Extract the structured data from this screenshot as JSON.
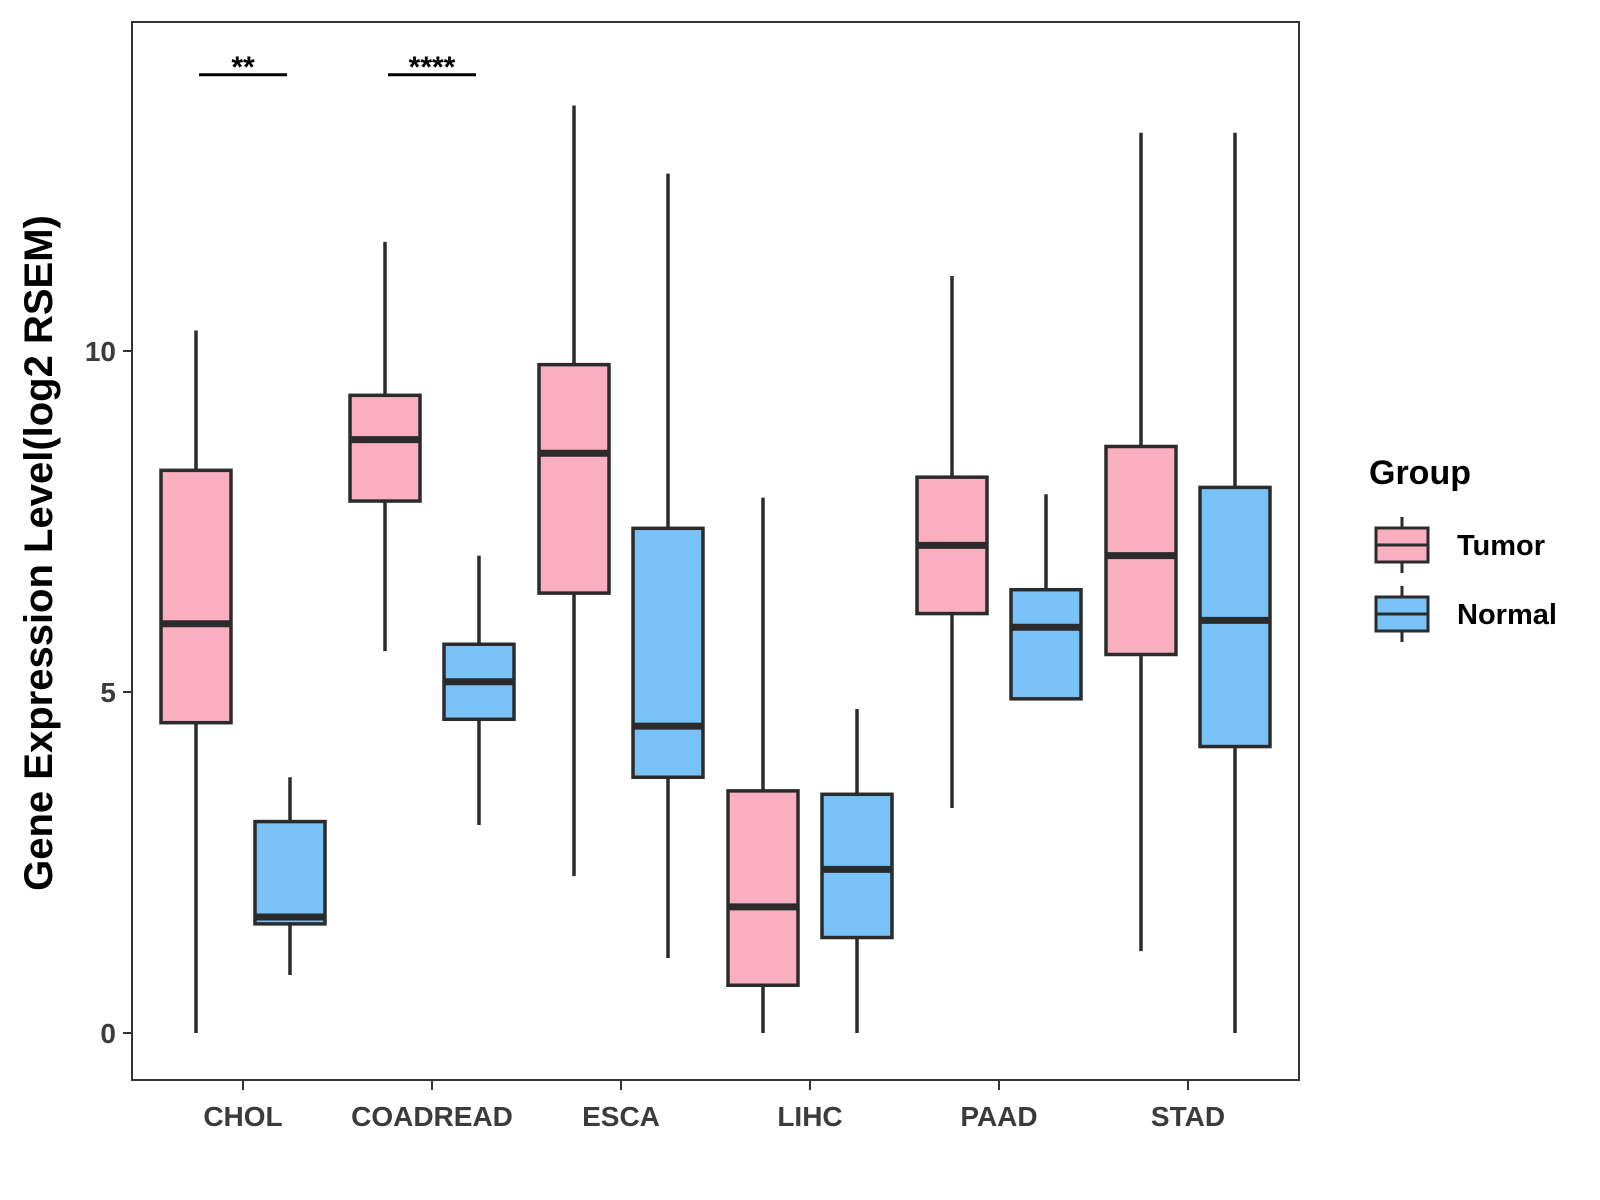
{
  "chart_data": {
    "type": "boxplot",
    "title": "",
    "xlabel": "",
    "ylabel": "Gene Expression Level(log2 RSEM)",
    "ylim": [
      -0.7,
      14.8
    ],
    "yticks": [
      0,
      5,
      10
    ],
    "categories": [
      "CHOL",
      "COADREAD",
      "ESCA",
      "LIHC",
      "PAAD",
      "STAD"
    ],
    "legend": {
      "title": "Group",
      "position": "right"
    },
    "series": [
      {
        "name": "Tumor",
        "color": "#F9AFC0",
        "boxes": [
          {
            "category": "CHOL",
            "min": 0.0,
            "q1": 4.55,
            "median": 6.0,
            "q3": 8.25,
            "max": 10.3
          },
          {
            "category": "COADREAD",
            "min": 5.6,
            "q1": 7.8,
            "median": 8.7,
            "q3": 9.35,
            "max": 11.6
          },
          {
            "category": "ESCA",
            "min": 2.3,
            "q1": 6.45,
            "median": 8.5,
            "q3": 9.8,
            "max": 13.6
          },
          {
            "category": "LIHC",
            "min": 0.0,
            "q1": 0.7,
            "median": 1.85,
            "q3": 3.55,
            "max": 7.85
          },
          {
            "category": "PAAD",
            "min": 3.3,
            "q1": 6.15,
            "median": 7.15,
            "q3": 8.15,
            "max": 11.1
          },
          {
            "category": "STAD",
            "min": 1.2,
            "q1": 5.55,
            "median": 7.0,
            "q3": 8.6,
            "max": 13.2
          }
        ]
      },
      {
        "name": "Normal",
        "color": "#79C2F8",
        "boxes": [
          {
            "category": "CHOL",
            "min": 0.85,
            "q1": 1.6,
            "median": 1.7,
            "q3": 3.1,
            "max": 3.75
          },
          {
            "category": "COADREAD",
            "min": 3.05,
            "q1": 4.6,
            "median": 5.15,
            "q3": 5.7,
            "max": 7.0
          },
          {
            "category": "ESCA",
            "min": 1.1,
            "q1": 3.75,
            "median": 4.5,
            "q3": 7.4,
            "max": 12.6
          },
          {
            "category": "LIHC",
            "min": 0.0,
            "q1": 1.4,
            "median": 2.4,
            "q3": 3.5,
            "max": 4.75
          },
          {
            "category": "PAAD",
            "min": 4.9,
            "q1": 4.9,
            "median": 5.95,
            "q3": 6.5,
            "max": 7.9
          },
          {
            "category": "STAD",
            "min": 0.0,
            "q1": 4.2,
            "median": 6.05,
            "q3": 8.0,
            "max": 13.2
          }
        ]
      }
    ],
    "annotations": [
      {
        "category": "CHOL",
        "label": "**",
        "y": 14.05
      },
      {
        "category": "COADREAD",
        "label": "****",
        "y": 14.05
      }
    ]
  }
}
